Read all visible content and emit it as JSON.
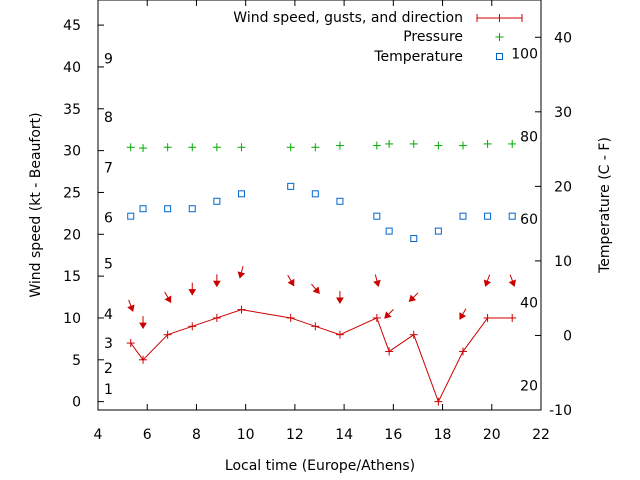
{
  "chart_data": {
    "type": "line",
    "xlabel": "Local time (Europe/Athens)",
    "ylabel": "Wind speed (kt - Beaufort)",
    "y2label": "Temperature (C - F)",
    "xlim": [
      4,
      22
    ],
    "ylim": [
      -1,
      48
    ],
    "y2lim": [
      -10,
      45
    ],
    "xticks": [
      4,
      6,
      8,
      10,
      12,
      14,
      16,
      18,
      20,
      22
    ],
    "yticks": [
      0,
      5,
      10,
      15,
      20,
      25,
      30,
      35,
      40,
      45
    ],
    "y2ticks": [
      -10,
      0,
      10,
      20,
      30,
      40
    ],
    "beaufort_labels": [
      {
        "label": "1",
        "value": 1.5
      },
      {
        "label": "2",
        "value": 4
      },
      {
        "label": "3",
        "value": 7
      },
      {
        "label": "4",
        "value": 10.5
      },
      {
        "label": "5",
        "value": 16.5
      },
      {
        "label": "6",
        "value": 22
      },
      {
        "label": "7",
        "value": 28
      },
      {
        "label": "8",
        "value": 34
      },
      {
        "label": "9",
        "value": 41
      }
    ],
    "fahrenheit_labels": [
      {
        "label": "20",
        "value": -6.7
      },
      {
        "label": "40",
        "value": 4.4
      },
      {
        "label": "60",
        "value": 15.6
      },
      {
        "label": "80",
        "value": 26.7
      },
      {
        "label": "100",
        "value": 37.8
      }
    ],
    "legend_position": "top-right",
    "grid": false,
    "series": [
      {
        "name": "Wind speed, gusts, and direction",
        "color": "#cc0000",
        "style": "line with plus markers, arrows show direction",
        "x": [
          5.33,
          5.83,
          6.83,
          7.83,
          8.83,
          9.83,
          11.83,
          12.83,
          13.83,
          15.33,
          15.83,
          16.83,
          17.83,
          18.83,
          19.83,
          20.83
        ],
        "values": [
          7,
          5,
          8,
          9,
          10,
          11,
          10,
          9,
          8,
          10,
          6,
          8,
          0,
          6,
          10,
          10
        ],
        "direction_deg": [
          340,
          0,
          330,
          0,
          0,
          15,
          330,
          320,
          0,
          345,
          45,
          45,
          null,
          30,
          20,
          340
        ]
      },
      {
        "name": "Pressure",
        "color": "#00aa00",
        "style": "plus markers",
        "x": [
          5.33,
          5.83,
          6.83,
          7.83,
          8.83,
          9.83,
          11.83,
          12.83,
          13.83,
          15.33,
          15.83,
          16.83,
          17.83,
          18.83,
          19.83,
          20.83
        ],
        "values": [
          30.4,
          30.3,
          30.4,
          30.4,
          30.4,
          30.4,
          30.4,
          30.4,
          30.6,
          30.6,
          30.8,
          30.8,
          30.6,
          30.6,
          30.8,
          30.8
        ]
      },
      {
        "name": "Temperature",
        "color": "#0066cc",
        "style": "hollow square markers on right axis",
        "x": [
          5.33,
          5.83,
          6.83,
          7.83,
          8.83,
          9.83,
          11.83,
          12.83,
          13.83,
          15.33,
          15.83,
          16.83,
          17.83,
          18.83,
          19.83,
          20.83
        ],
        "values": [
          16,
          17,
          17,
          17,
          18,
          19,
          20,
          19,
          18,
          16,
          14,
          13,
          14,
          16,
          16,
          16
        ]
      }
    ]
  }
}
